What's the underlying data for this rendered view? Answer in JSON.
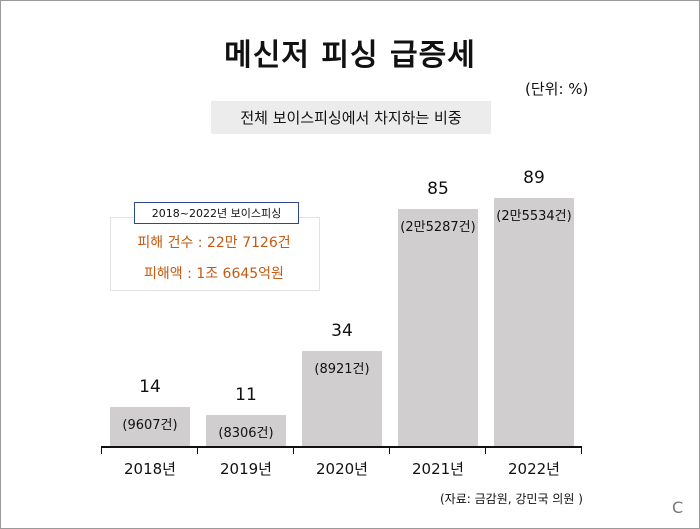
{
  "title": "메신저 피싱 급증세",
  "unit": "(단위: %)",
  "subtitle": "전체 보이스피싱에서 차지하는 비중",
  "info": {
    "tag": "2018~2022년 보이스피싱",
    "line1": "피해 건수 : 22만 7126건",
    "line2": "피해액 : 1조 6645억원"
  },
  "source": "(자료: 금감원, 강민국 의원 )",
  "corner_mark": "C",
  "colors": {
    "bar": "#d0cece",
    "accent": "#c55a11",
    "tag_border": "#2f4a8a"
  },
  "chart_data": {
    "type": "bar",
    "title": "메신저 피싱 급증세",
    "subtitle": "전체 보이스피싱에서 차지하는 비중",
    "ylabel": "(단위: %)",
    "categories": [
      "2018년",
      "2019년",
      "2020년",
      "2021년",
      "2022년"
    ],
    "values": [
      14,
      11,
      34,
      85,
      89
    ],
    "value_labels": [
      "14",
      "11",
      "34",
      "85",
      "89"
    ],
    "count_labels": [
      "(9607건)",
      "(8306건)",
      "(8921건)",
      "(2만5287건)",
      "(2만5534건)"
    ],
    "ylim": [
      0,
      100
    ],
    "grid": false,
    "legend": "none"
  }
}
